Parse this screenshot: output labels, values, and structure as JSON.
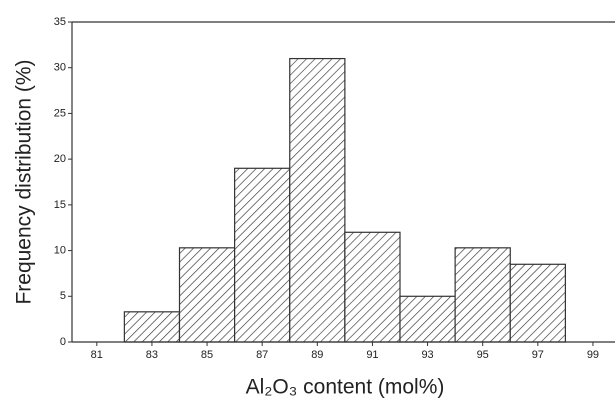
{
  "chart_data": {
    "type": "histogram",
    "x_label": "Al₂O₃ content (mol%)",
    "y_label": "Frequency distribution (%)",
    "bins": [
      82,
      84,
      86,
      88,
      90,
      92,
      94,
      96,
      98
    ],
    "values": [
      3.3,
      10.3,
      19,
      31,
      12,
      5,
      10.3,
      8.5
    ],
    "color": "#333333",
    "xlim": [
      80.1,
      99.8
    ],
    "xticks": [
      81,
      83,
      85,
      87,
      89,
      91,
      93,
      95,
      97,
      99
    ],
    "ylim": [
      0,
      35
    ],
    "yticks": [
      0,
      5,
      10,
      15,
      20,
      25,
      30,
      35
    ]
  }
}
